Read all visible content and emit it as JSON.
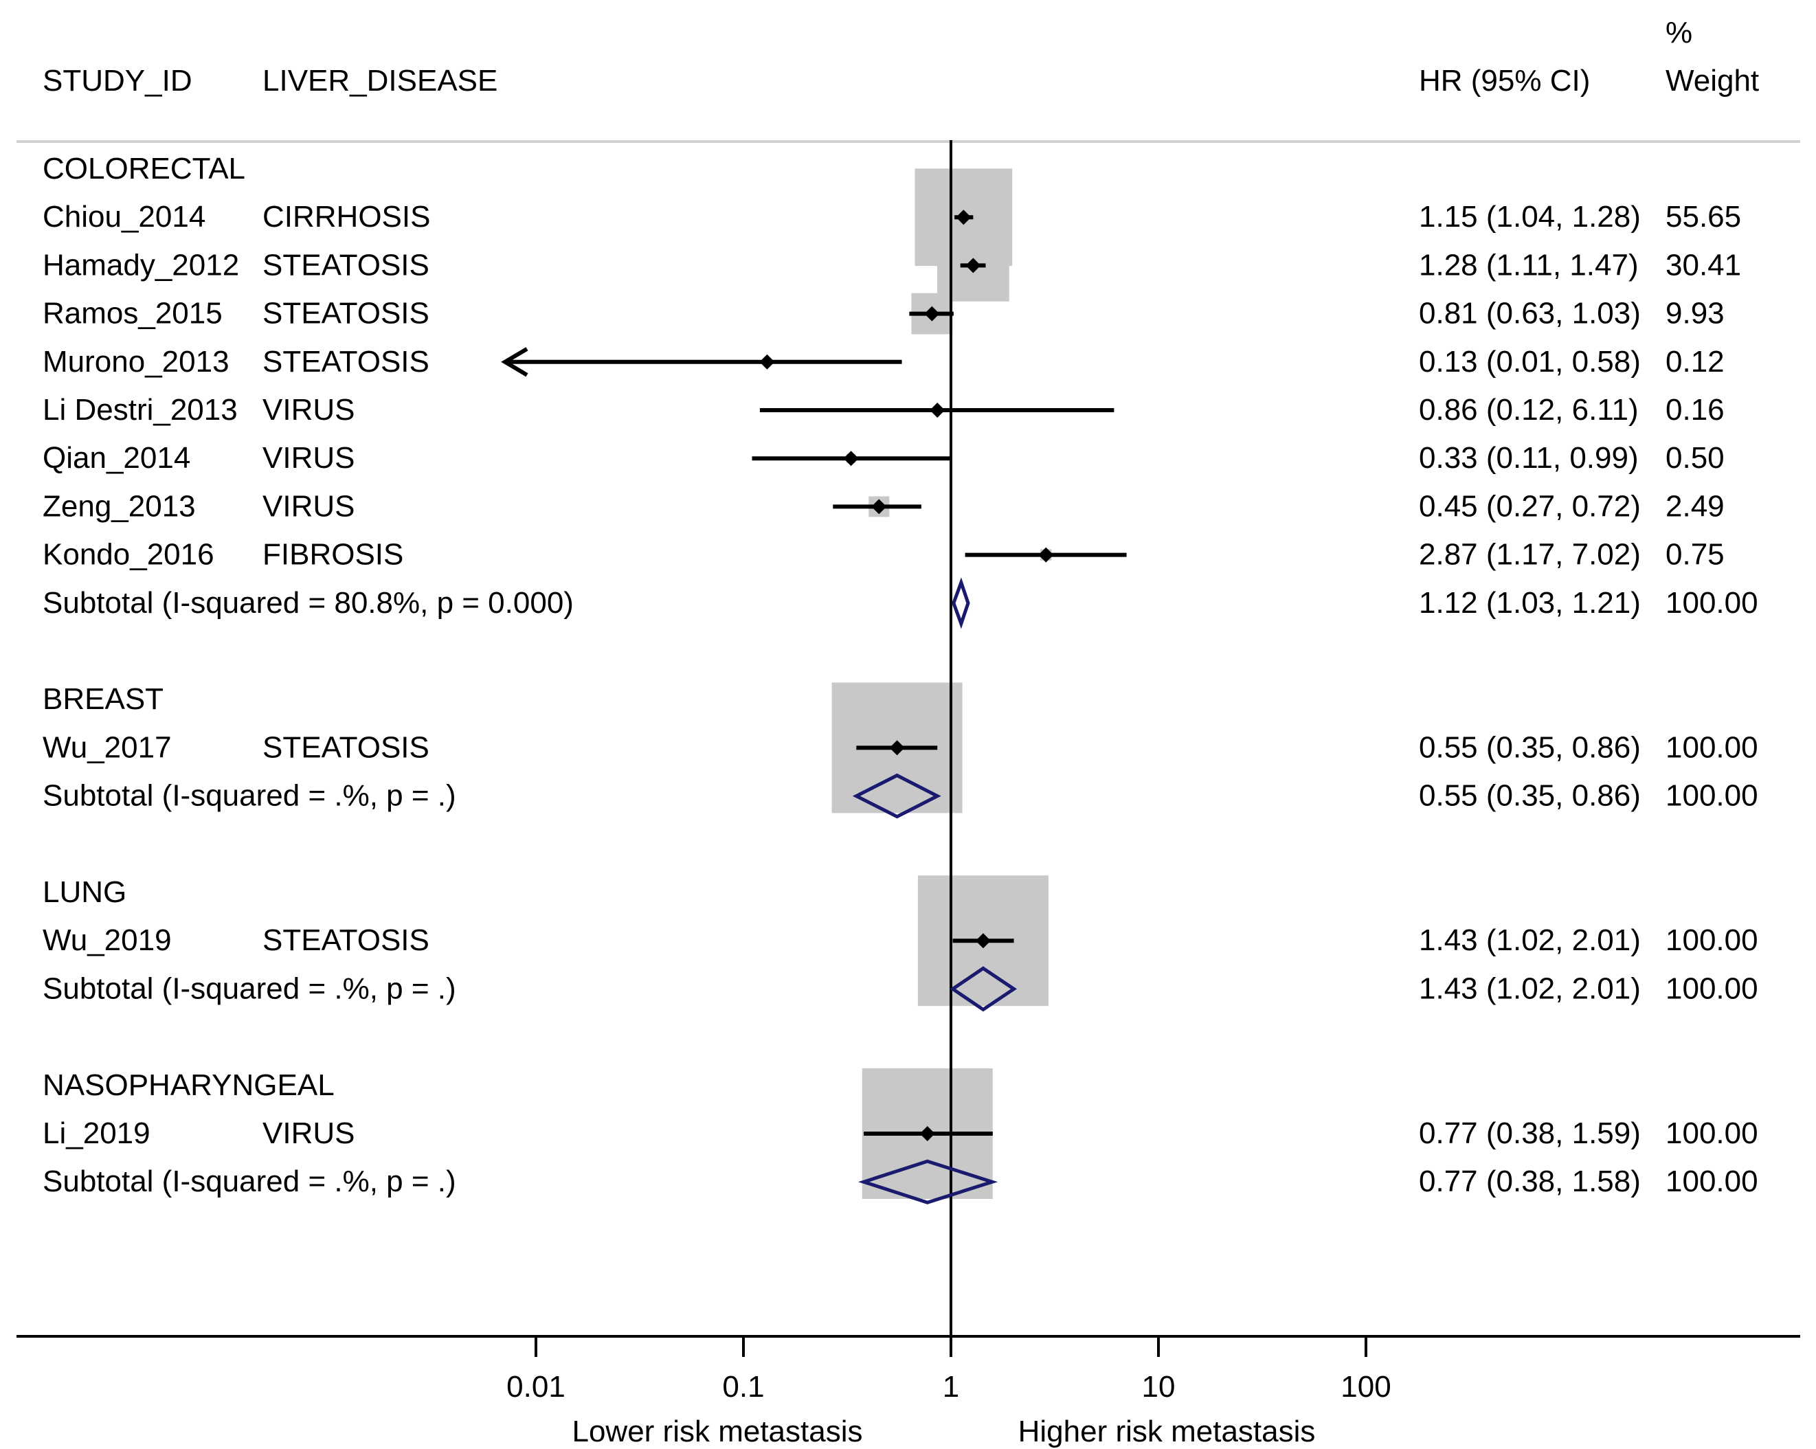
{
  "chart_data": {
    "type": "forest",
    "scale": "log",
    "headers": {
      "study": "STUDY_ID",
      "disease": "LIVER_DISEASE",
      "hr": "HR (95% CI)",
      "weight_pct": "%",
      "weight": "Weight"
    },
    "x_axis": {
      "ticks": [
        {
          "value": 0.01,
          "label": "0.01"
        },
        {
          "value": 0.1,
          "label": "0.1"
        },
        {
          "value": 1,
          "label": "1"
        },
        {
          "value": 10,
          "label": "10"
        },
        {
          "value": 100,
          "label": "100"
        }
      ],
      "left_label": "Lower risk metastasis",
      "right_label": "Higher risk metastasis",
      "reference_line": 1
    },
    "colors": {
      "box": "#c8c8c8",
      "diamond": "#1a1a6e",
      "line": "#000000",
      "divider": "#d0d0d0"
    },
    "groups": [
      {
        "name": "COLORECTAL",
        "studies": [
          {
            "study": "Chiou_2014",
            "disease": "CIRRHOSIS",
            "hr": 1.15,
            "lo": 1.04,
            "hi": 1.28,
            "hr_text": "1.15 (1.04, 1.28)",
            "weight": 55.65,
            "weight_text": "55.65"
          },
          {
            "study": "Hamady_2012",
            "disease": "STEATOSIS",
            "hr": 1.28,
            "lo": 1.11,
            "hi": 1.47,
            "hr_text": "1.28 (1.11, 1.47)",
            "weight": 30.41,
            "weight_text": "30.41"
          },
          {
            "study": "Ramos_2015",
            "disease": "STEATOSIS",
            "hr": 0.81,
            "lo": 0.63,
            "hi": 1.03,
            "hr_text": "0.81 (0.63, 1.03)",
            "weight": 9.93,
            "weight_text": "9.93"
          },
          {
            "study": "Murono_2013",
            "disease": "STEATOSIS",
            "hr": 0.13,
            "lo": 0.01,
            "hi": 0.58,
            "hr_text": "0.13 (0.01, 0.58)",
            "weight": 0.12,
            "weight_text": "0.12",
            "arrow_left": true
          },
          {
            "study": "Li Destri_2013",
            "disease": "VIRUS",
            "hr": 0.86,
            "lo": 0.12,
            "hi": 6.11,
            "hr_text": "0.86 (0.12, 6.11)",
            "weight": 0.16,
            "weight_text": "0.16"
          },
          {
            "study": "Qian_2014",
            "disease": "VIRUS",
            "hr": 0.33,
            "lo": 0.11,
            "hi": 0.99,
            "hr_text": "0.33 (0.11, 0.99)",
            "weight": 0.5,
            "weight_text": "0.50"
          },
          {
            "study": "Zeng_2013",
            "disease": "VIRUS",
            "hr": 0.45,
            "lo": 0.27,
            "hi": 0.72,
            "hr_text": "0.45 (0.27, 0.72)",
            "weight": 2.49,
            "weight_text": "2.49"
          },
          {
            "study": "Kondo_2016",
            "disease": "FIBROSIS",
            "hr": 2.87,
            "lo": 1.17,
            "hi": 7.02,
            "hr_text": "2.87 (1.17, 7.02)",
            "weight": 0.75,
            "weight_text": "0.75"
          }
        ],
        "subtotal": {
          "label": "Subtotal  (I-squared = 80.8%, p = 0.000)",
          "hr": 1.12,
          "lo": 1.03,
          "hi": 1.21,
          "hr_text": "1.12 (1.03, 1.21)",
          "weight_text": "100.00"
        }
      },
      {
        "name": "BREAST",
        "studies": [
          {
            "study": "Wu_2017",
            "disease": "STEATOSIS",
            "hr": 0.55,
            "lo": 0.35,
            "hi": 0.86,
            "hr_text": "0.55 (0.35, 0.86)",
            "weight": 100.0,
            "weight_text": "100.00"
          }
        ],
        "subtotal": {
          "label": "Subtotal  (I-squared = .%, p = .)",
          "hr": 0.55,
          "lo": 0.35,
          "hi": 0.86,
          "hr_text": "0.55 (0.35, 0.86)",
          "weight_text": "100.00"
        }
      },
      {
        "name": "LUNG",
        "studies": [
          {
            "study": "Wu_2019",
            "disease": "STEATOSIS",
            "hr": 1.43,
            "lo": 1.02,
            "hi": 2.01,
            "hr_text": "1.43 (1.02, 2.01)",
            "weight": 100.0,
            "weight_text": "100.00"
          }
        ],
        "subtotal": {
          "label": "Subtotal  (I-squared = .%, p = .)",
          "hr": 1.43,
          "lo": 1.02,
          "hi": 2.01,
          "hr_text": "1.43 (1.02, 2.01)",
          "weight_text": "100.00"
        }
      },
      {
        "name": "NASOPHARYNGEAL",
        "studies": [
          {
            "study": "Li_2019",
            "disease": "VIRUS",
            "hr": 0.77,
            "lo": 0.38,
            "hi": 1.59,
            "hr_text": "0.77 (0.38, 1.59)",
            "weight": 100.0,
            "weight_text": "100.00"
          }
        ],
        "subtotal": {
          "label": "Subtotal  (I-squared = .%, p = .)",
          "hr": 0.77,
          "lo": 0.38,
          "hi": 1.58,
          "hr_text": "0.77 (0.38, 1.58)",
          "weight_text": "100.00"
        }
      }
    ]
  }
}
